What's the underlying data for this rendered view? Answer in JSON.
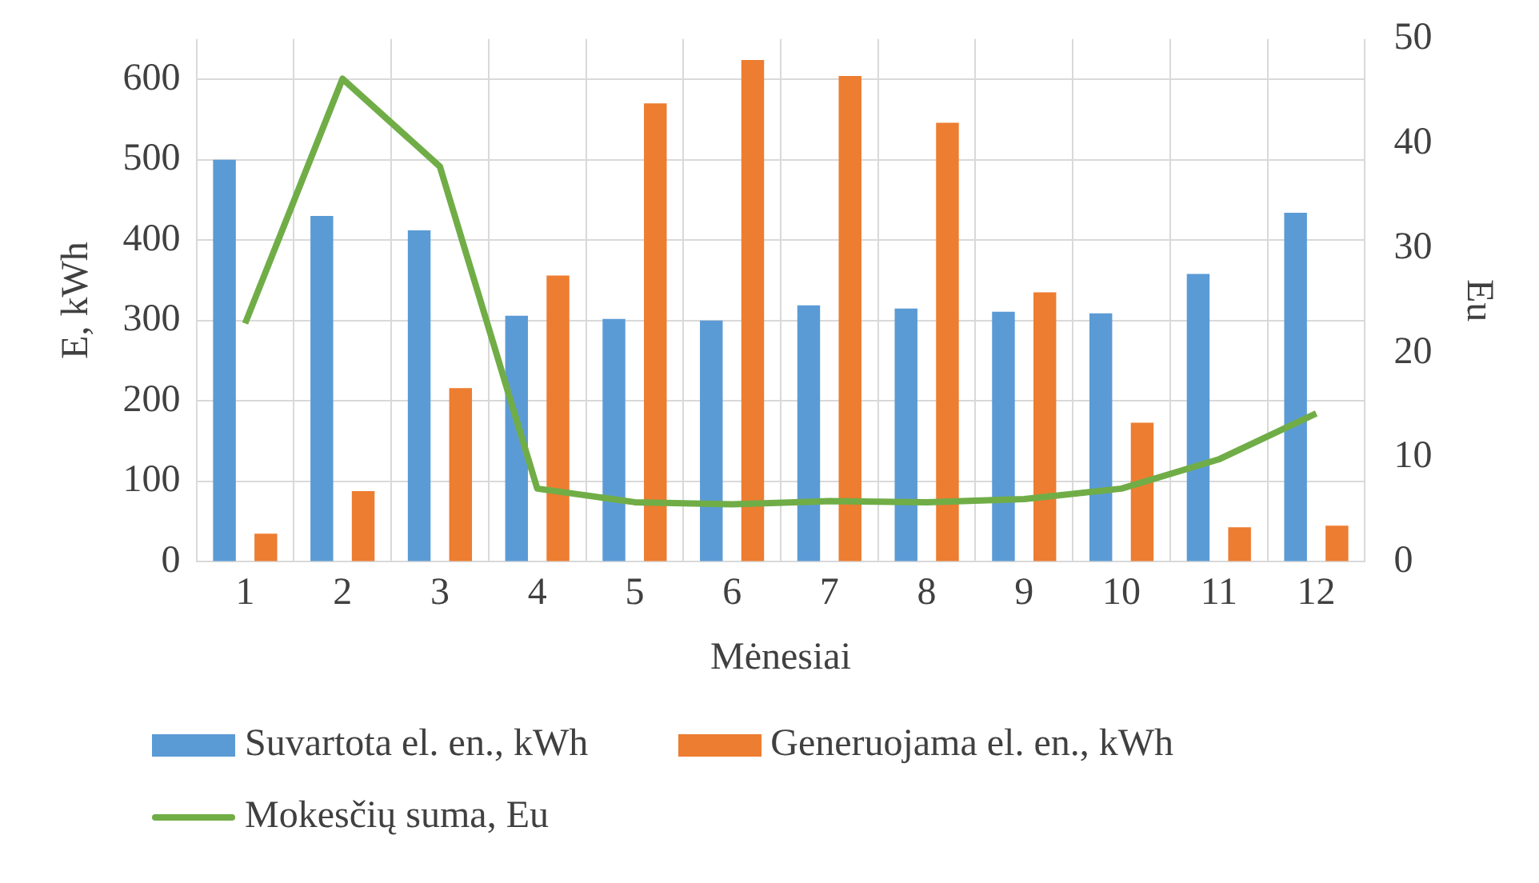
{
  "chart_data": {
    "type": "bar",
    "xlabel": "Mėnesiai",
    "ylabel": "E, kWh",
    "y2label": "Eu",
    "categories": [
      "1",
      "2",
      "3",
      "4",
      "5",
      "6",
      "7",
      "8",
      "9",
      "10",
      "11",
      "12"
    ],
    "series": [
      {
        "name": "Suvartota el. en., kWh",
        "color": "#5b9bd5",
        "values": [
          500,
          430,
          412,
          306,
          302,
          300,
          319,
          315,
          311,
          309,
          358,
          434
        ]
      },
      {
        "name": "Generuojama el. en., kWh",
        "color": "#ed7d31",
        "values": [
          35,
          88,
          216,
          356,
          570,
          624,
          604,
          546,
          335,
          173,
          43,
          45
        ]
      },
      {
        "name": "Mokesčių suma, Eu",
        "type": "line",
        "axis": "y2",
        "color": "#70ad47",
        "marker": "none",
        "values": [
          22.8,
          46.2,
          37.8,
          7,
          5.7,
          5.5,
          5.8,
          5.7,
          6,
          7,
          9.8,
          14.2
        ]
      }
    ],
    "ylim": [
      0,
      650
    ],
    "yticks": [
      0,
      100,
      200,
      300,
      400,
      500,
      600
    ],
    "y2lim": [
      0,
      50
    ],
    "y2ticks": [
      0,
      10,
      20,
      30,
      40,
      50
    ],
    "grid": true,
    "legend": "bottom"
  }
}
